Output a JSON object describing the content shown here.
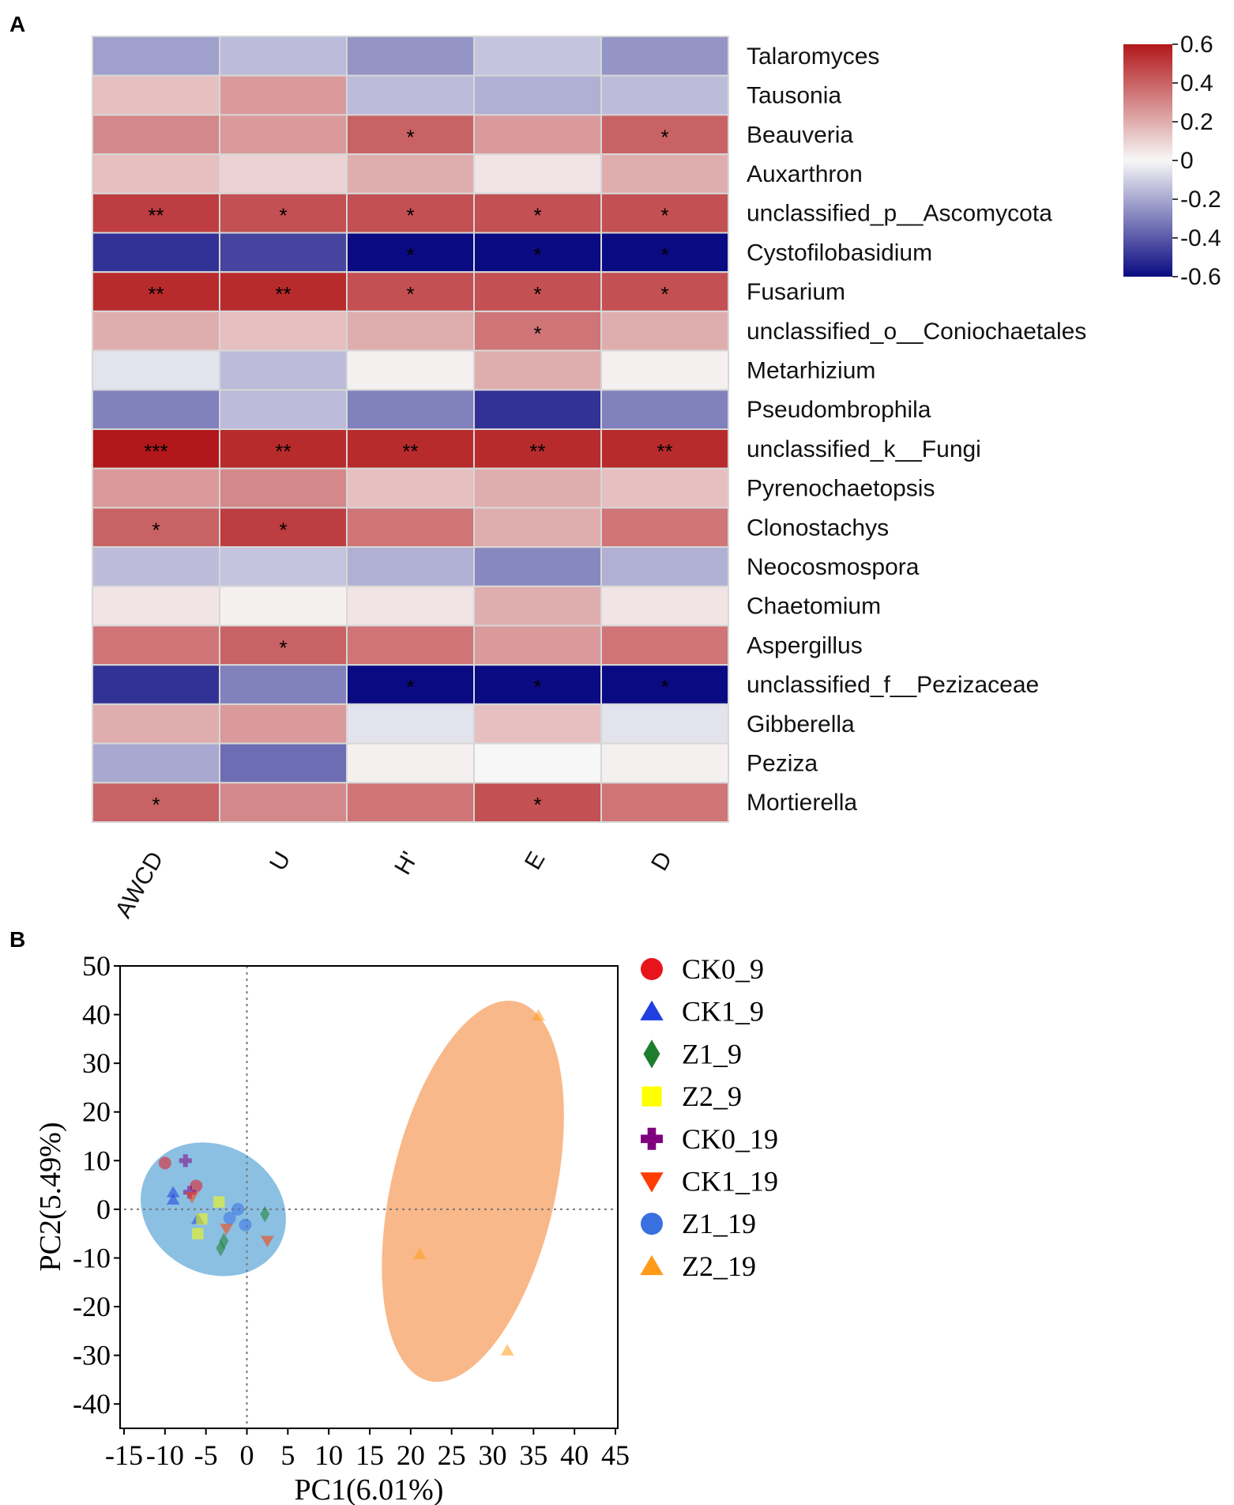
{
  "chart_data": [
    {
      "type": "heatmap",
      "panel_label": "A",
      "columns": [
        "AWCD",
        "U",
        "H'",
        "E",
        "D"
      ],
      "rows": [
        "Talaromyces",
        "Tausonia",
        "Beauveria",
        "Auxarthron",
        "unclassified_p__Ascomycota",
        "Cystofilobasidium",
        "Fusarium",
        "unclassified_o__Coniochaetales",
        "Metarhizium",
        "Pseudombrophila",
        "unclassified_k__Fungi",
        "Pyrenochaetopsis",
        "Clonostachys",
        "Neocosmospora",
        "Chaetomium",
        "Aspergillus",
        "unclassified_f__Pezizaceae",
        "Gibberella",
        "Peziza",
        "Mortierella"
      ],
      "values": [
        [
          -0.22,
          -0.15,
          -0.25,
          -0.13,
          -0.25
        ],
        [
          0.15,
          0.25,
          -0.15,
          -0.18,
          -0.15
        ],
        [
          0.3,
          0.25,
          0.4,
          0.25,
          0.4
        ],
        [
          0.15,
          0.1,
          0.2,
          0.05,
          0.2
        ],
        [
          0.5,
          0.45,
          0.45,
          0.45,
          0.45
        ],
        [
          -0.5,
          -0.45,
          -0.6,
          -0.7,
          -0.6
        ],
        [
          0.55,
          0.55,
          0.45,
          0.45,
          0.45
        ],
        [
          0.2,
          0.15,
          0.2,
          0.35,
          0.2
        ],
        [
          -0.05,
          -0.15,
          0.02,
          0.2,
          0.02
        ],
        [
          -0.3,
          -0.15,
          -0.3,
          -0.5,
          -0.3
        ],
        [
          0.6,
          0.55,
          0.55,
          0.55,
          0.55
        ],
        [
          0.25,
          0.3,
          0.15,
          0.2,
          0.15
        ],
        [
          0.4,
          0.5,
          0.35,
          0.2,
          0.35
        ],
        [
          -0.15,
          -0.13,
          -0.18,
          -0.28,
          -0.18
        ],
        [
          0.05,
          0.02,
          0.05,
          0.2,
          0.05
        ],
        [
          0.35,
          0.4,
          0.35,
          0.25,
          0.35
        ],
        [
          -0.5,
          -0.3,
          -0.65,
          -0.7,
          -0.65
        ],
        [
          0.2,
          0.25,
          -0.05,
          0.15,
          -0.05
        ],
        [
          -0.2,
          -0.35,
          0.02,
          0.0,
          0.02
        ],
        [
          0.4,
          0.3,
          0.35,
          0.45,
          0.35
        ]
      ],
      "significance": [
        [
          "",
          "",
          "",
          "",
          ""
        ],
        [
          "",
          "",
          "",
          "",
          ""
        ],
        [
          "",
          "",
          "*",
          "",
          "*"
        ],
        [
          "",
          "",
          "",
          "",
          ""
        ],
        [
          "**",
          "*",
          "*",
          "*",
          "*"
        ],
        [
          "",
          "",
          "*",
          "*",
          "*"
        ],
        [
          "**",
          "**",
          "*",
          "*",
          "*"
        ],
        [
          "",
          "",
          "",
          "*",
          ""
        ],
        [
          "",
          "",
          "",
          "",
          ""
        ],
        [
          "",
          "",
          "",
          "",
          ""
        ],
        [
          "***",
          "**",
          "**",
          "**",
          "**"
        ],
        [
          "",
          "",
          "",
          "",
          ""
        ],
        [
          "*",
          "*",
          "",
          "",
          ""
        ],
        [
          "",
          "",
          "",
          "",
          ""
        ],
        [
          "",
          "",
          "",
          "",
          ""
        ],
        [
          "",
          "*",
          "",
          "",
          ""
        ],
        [
          "",
          "",
          "*",
          "*",
          "*"
        ],
        [
          "",
          "",
          "",
          "",
          ""
        ],
        [
          "",
          "",
          "",
          "",
          ""
        ],
        [
          "*",
          "",
          "",
          "*",
          ""
        ]
      ],
      "color_range": [
        -0.6,
        0.6
      ],
      "colorbar_ticks": [
        "0.6",
        "0.4",
        "0.2",
        "0",
        "-0.2",
        "-0.4",
        "-0.6"
      ],
      "colorbar_tick_values": [
        0.6,
        0.4,
        0.2,
        0,
        -0.2,
        -0.4,
        -0.6
      ],
      "colormap": {
        "low": "#0a0a82",
        "mid": "#f7f7f7",
        "high": "#b2181b"
      }
    },
    {
      "type": "scatter",
      "panel_label": "B",
      "xlabel": "PC1(6.01%)",
      "ylabel": "PC2(5.49%)",
      "xlim": [
        -15,
        45
      ],
      "ylim": [
        -45,
        50
      ],
      "xticks": [
        "-15",
        "-10",
        "-5",
        "0",
        "5",
        "10",
        "15",
        "20",
        "25",
        "30",
        "35",
        "40",
        "45"
      ],
      "xtick_values": [
        -15,
        -10,
        -5,
        0,
        5,
        10,
        15,
        20,
        25,
        30,
        35,
        40,
        45
      ],
      "yticks": [
        "50",
        "40",
        "30",
        "20",
        "10",
        "0",
        "-10",
        "-20",
        "-30",
        "-40"
      ],
      "ytick_values": [
        50,
        40,
        30,
        20,
        10,
        0,
        -10,
        -20,
        -30,
        -40
      ],
      "reference_lines": {
        "x": 0,
        "y": 0
      },
      "ellipses": [
        {
          "group": "cluster-1",
          "color": "#6aaedb",
          "center": [
            -4.1,
            0
          ],
          "radius_x": 9.2,
          "radius_y": 13.1,
          "rotation_deg": 30
        },
        {
          "group": "Z2_19",
          "color": "#f7a468",
          "center": [
            27.6,
            3.7
          ],
          "radius_x": 10,
          "radius_y": 40,
          "rotation_deg": 13
        }
      ],
      "series": [
        {
          "name": "CK0_9",
          "marker": "circle",
          "color": "#e8141c",
          "points": [
            [
              -10,
              9.5
            ],
            [
              -6.2,
              4.8
            ]
          ]
        },
        {
          "name": "CK1_9",
          "marker": "triangle-up",
          "color": "#1f3fe0",
          "points": [
            [
              -9,
              3.5
            ],
            [
              -9,
              2.0
            ],
            [
              -6,
              -2.0
            ]
          ]
        },
        {
          "name": "Z1_9",
          "marker": "diamond",
          "color": "#1e7d2c",
          "points": [
            [
              -3.2,
              -8.0
            ],
            [
              -2.8,
              -6.5
            ],
            [
              2.2,
              -1.0
            ]
          ]
        },
        {
          "name": "Z2_9",
          "marker": "square",
          "color": "#ffff00",
          "points": [
            [
              -3.4,
              1.5
            ],
            [
              -5.5,
              -2.0
            ],
            [
              -6,
              -5.0
            ]
          ]
        },
        {
          "name": "CK0_19",
          "marker": "plus",
          "color": "#800080",
          "points": [
            [
              -7.5,
              10.0
            ],
            [
              -7.0,
              3.5
            ]
          ]
        },
        {
          "name": "CK1_19",
          "marker": "triangle-down",
          "color": "#ff3c00",
          "points": [
            [
              -6.7,
              2.5
            ],
            [
              -2.5,
              -4.0
            ],
            [
              2.5,
              -6.5
            ]
          ]
        },
        {
          "name": "Z1_19",
          "marker": "circle",
          "color": "#3a6fe0",
          "points": [
            [
              -1.1,
              0
            ],
            [
              -2.1,
              -1.8
            ],
            [
              -0.2,
              -3.2
            ]
          ]
        },
        {
          "name": "Z2_19",
          "marker": "triangle-up",
          "color": "#ff9a1a",
          "points": [
            [
              35.6,
              39.8
            ],
            [
              21.1,
              -9.2
            ],
            [
              31.8,
              -29.0
            ]
          ]
        }
      ]
    }
  ]
}
